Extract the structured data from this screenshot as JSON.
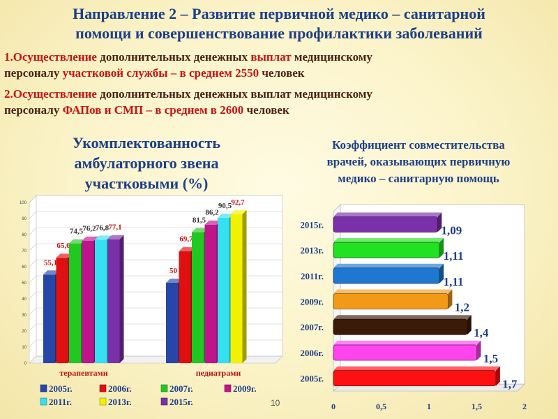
{
  "header": {
    "title_line1": "Направление 2 – Развитие первичной медико – санитарной",
    "title_line2": "помощи и совершенствование профилактики заболеваний"
  },
  "item1": {
    "p1": "1.Осуществление ",
    "p2": "дополнительных денежных ",
    "p3": "выплат",
    "p4": " медицинскому",
    "p5": "персоналу ",
    "p6": "участковой службы – в среднем 2550",
    "p7": " человек"
  },
  "item2": {
    "p1": "2.Осуществление ",
    "p2": "дополнительных денежных выплат медицинскому",
    "p3": "персоналу ",
    "p4": "ФАПов и СМП – в среднем в 2600",
    "p5": "  человек"
  },
  "page_number": "10",
  "colors": {
    "title": "#1d3f8a",
    "text": "#4b1f12",
    "highlight": "#cc1111",
    "series": [
      "#2747a8",
      "#e01010",
      "#22c822",
      "#c0148c",
      "#35e0f0",
      "#f2f200",
      "#7a30a8"
    ]
  },
  "chart_data": [
    {
      "type": "bar",
      "title_lines": [
        "Укомплектованность",
        "амбулаторного звена",
        "участковыми (%)"
      ],
      "categories": [
        "терапевтами",
        "педиатрами"
      ],
      "series": [
        {
          "name": "2005г.",
          "values": [
            55.1,
            50
          ]
        },
        {
          "name": "2006г.",
          "values": [
            65.6,
            69.7
          ]
        },
        {
          "name": "2007г.",
          "values": [
            74.5,
            81.5
          ]
        },
        {
          "name": "2009г.",
          "values": [
            76.2,
            86.2
          ]
        },
        {
          "name": "2011г.",
          "values": [
            76.8,
            90.5
          ]
        },
        {
          "name": "2013г.",
          "values": [
            null,
            92.7
          ]
        },
        {
          "name": "2015г.",
          "values": [
            77.1,
            null
          ]
        }
      ],
      "data_labels": [
        [
          "55,1",
          "65,6",
          "74,5",
          "76,2",
          "76,8",
          "",
          "77,1"
        ],
        [
          "50",
          "69,7",
          "81,5",
          "86,2",
          "90,5",
          "92,7",
          ""
        ]
      ],
      "y_ticks": [
        "0",
        "10",
        "20",
        "30",
        "40",
        "50",
        "60",
        "70",
        "80",
        "90",
        "100"
      ],
      "ylim": [
        0,
        100
      ],
      "grid": true,
      "legend_position": "bottom"
    },
    {
      "type": "bar",
      "orientation": "horizontal",
      "title_lines": [
        "Коэффициент совместительства",
        "врачей, оказывающих первичную",
        "медико – санитарную помощь"
      ],
      "categories": [
        "2015г.",
        "2013г.",
        "2011г.",
        "2009г.",
        "2007г.",
        "2006г.",
        "2005г."
      ],
      "values": [
        1.09,
        1.11,
        1.11,
        1.2,
        1.4,
        1.5,
        1.7
      ],
      "data_labels": [
        "1,09",
        "1,11",
        "1,11",
        "1,2",
        "1,4",
        "1,5",
        "1,7"
      ],
      "bar_colors": [
        "#7a30a8",
        "#22e022",
        "#1f78d0",
        "#f29a18",
        "#3a1a08",
        "#ff44ee",
        "#ff1010"
      ],
      "x_ticks": [
        "0",
        "0,5",
        "1",
        "1,5",
        "2"
      ],
      "xlim": [
        0,
        2
      ],
      "grid": false
    }
  ]
}
